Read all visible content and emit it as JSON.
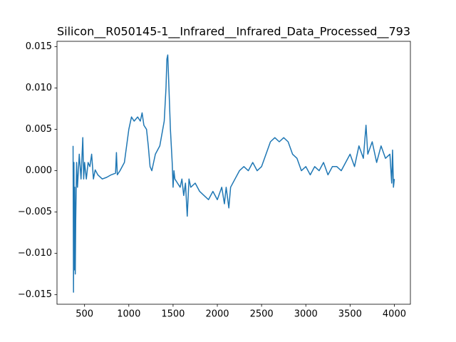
{
  "chart_data": {
    "type": "line",
    "title": "Silicon__R050145-1__Infrared__Infrared_Data_Processed__793",
    "x": [
      370,
      375,
      380,
      385,
      390,
      395,
      400,
      410,
      420,
      440,
      460,
      480,
      490,
      500,
      520,
      540,
      560,
      580,
      600,
      620,
      650,
      700,
      750,
      800,
      850,
      860,
      870,
      900,
      950,
      1000,
      1030,
      1060,
      1100,
      1130,
      1150,
      1170,
      1200,
      1220,
      1240,
      1260,
      1300,
      1350,
      1400,
      1420,
      1430,
      1440,
      1450,
      1470,
      1490,
      1500,
      1510,
      1520,
      1550,
      1580,
      1600,
      1620,
      1640,
      1660,
      1680,
      1700,
      1750,
      1800,
      1850,
      1900,
      1950,
      2000,
      2050,
      2080,
      2100,
      2130,
      2150,
      2200,
      2250,
      2300,
      2350,
      2400,
      2450,
      2500,
      2550,
      2600,
      2650,
      2700,
      2750,
      2800,
      2850,
      2900,
      2950,
      3000,
      3050,
      3100,
      3150,
      3200,
      3250,
      3300,
      3350,
      3400,
      3450,
      3500,
      3550,
      3600,
      3650,
      3680,
      3700,
      3750,
      3800,
      3850,
      3900,
      3950,
      3970,
      3980,
      3990,
      4000
    ],
    "series": [
      {
        "name": "Infrared",
        "color": "#1f77b4",
        "values": [
          0.003,
          -0.0147,
          0.001,
          -0.012,
          -0.002,
          -0.0125,
          -0.006,
          0.001,
          -0.002,
          0.002,
          -0.001,
          0.004,
          -0.001,
          0.001,
          -0.001,
          0.001,
          0.0005,
          0.002,
          -0.001,
          0.0001,
          -0.0005,
          -0.001,
          -0.0008,
          -0.0005,
          -0.0003,
          0.0022,
          -0.0005,
          0,
          0.001,
          0.005,
          0.0065,
          0.006,
          0.0065,
          0.006,
          0.007,
          0.0055,
          0.005,
          0.003,
          0.0005,
          0,
          0.002,
          0.003,
          0.006,
          0.01,
          0.0135,
          0.014,
          0.011,
          0.005,
          0.001,
          -0.002,
          0,
          -0.001,
          -0.0015,
          -0.002,
          -0.001,
          -0.003,
          -0.0015,
          -0.0055,
          -0.001,
          -0.002,
          -0.0015,
          -0.0025,
          -0.003,
          -0.0035,
          -0.0025,
          -0.0035,
          -0.002,
          -0.004,
          -0.002,
          -0.0045,
          -0.002,
          -0.001,
          0,
          0.0005,
          0,
          0.001,
          0,
          0.0005,
          0.002,
          0.0035,
          0.004,
          0.0035,
          0.004,
          0.0035,
          0.002,
          0.0015,
          0,
          0.0005,
          -0.0005,
          0.0005,
          0,
          0.001,
          -0.0005,
          0.0005,
          0.0005,
          0,
          0.001,
          0.002,
          0.0005,
          0.003,
          0.0015,
          0.0055,
          0.002,
          0.0035,
          0.001,
          0.003,
          0.0015,
          0.002,
          -0.0015,
          0.0025,
          -0.002,
          -0.001
        ]
      }
    ],
    "xlim": [
      188.5,
      4181.5
    ],
    "ylim": [
      -0.01615,
      0.01565
    ],
    "xticks": [
      500,
      1000,
      1500,
      2000,
      2500,
      3000,
      3500,
      4000
    ],
    "yticks": [
      {
        "value": -0.015,
        "label": "−0.015"
      },
      {
        "value": -0.01,
        "label": "−0.010"
      },
      {
        "value": -0.005,
        "label": "−0.005"
      },
      {
        "value": 0,
        "label": "0.000"
      },
      {
        "value": 0.005,
        "label": "0.005"
      },
      {
        "value": 0.01,
        "label": "0.010"
      },
      {
        "value": 0.015,
        "label": "0.015"
      }
    ]
  }
}
